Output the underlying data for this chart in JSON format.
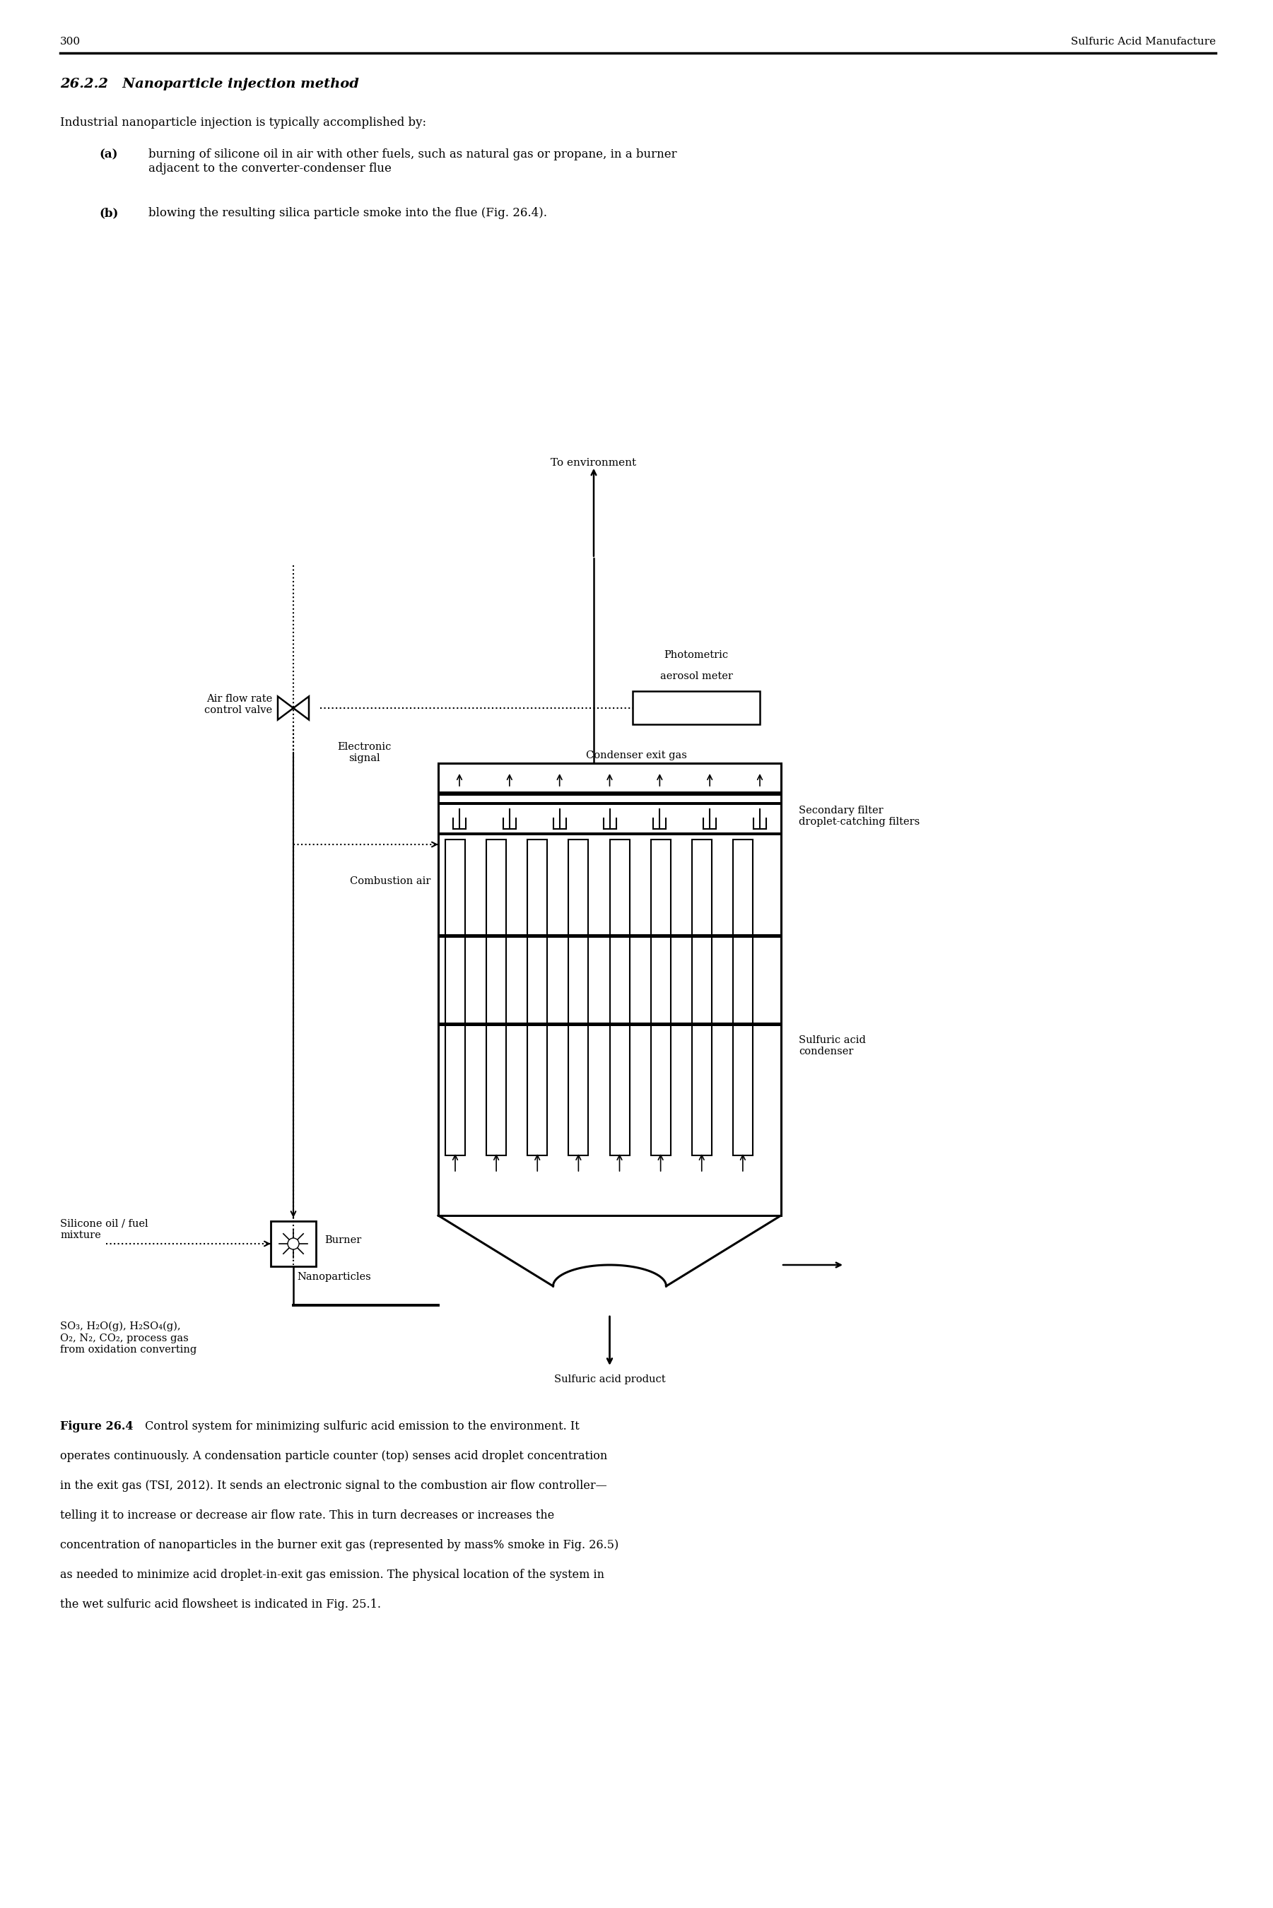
{
  "page_number": "300",
  "header_right": "Sulfuric Acid Manufacture",
  "section_title": "26.2.2   Nanoparticle injection method",
  "intro_text": "Industrial nanoparticle injection is typically accomplished by:",
  "item_a_label": "(a)",
  "item_a_text": "burning of silicone oil in air with other fuels, such as natural gas or propane, in a burner\nadjacent to the converter-condenser flue",
  "item_b_label": "(b)",
  "item_b_text": "blowing the resulting silica particle smoke into the flue (Fig. 26.4).",
  "label_to_env": "To environment",
  "label_photometric": "Photometric\naerosol meter",
  "label_electronic": "Electronic\nsignal",
  "label_condenser_exit": "Condenser exit gas",
  "label_airflow": "Air flow rate\ncontrol valve",
  "label_secondary": "Secondary filter\ndroplet-catching filters",
  "label_combustion_air": "Combustion air",
  "label_sulfuric_condenser": "Sulfuric acid\ncondenser",
  "label_silicone": "Silicone oil / fuel\nmixture",
  "label_burner": "Burner",
  "label_nanoparticles": "Nanoparticles",
  "label_so3": "SO₃, H₂O(g), H₂SO₄(g),\nO₂, N₂, CO₂, process gas\nfrom oxidation converting",
  "label_product": "Sulfuric acid product",
  "caption_bold": "Figure 26.4",
  "caption_rest": " Control system for minimizing sulfuric acid emission to the environment. It operates continuously. A condensation particle counter (top) senses acid droplet concentration in the exit gas (TSI, 2012). It sends an electronic signal to the combustion air flow controller—telling it to increase or decrease air flow rate. This in turn decreases or increases the concentration of nanoparticles in the burner exit gas (represented by mass% smoke in Fig. 26.5) as needed to minimize acid droplet-in-exit gas emission. The physical location of the system in the wet sulfuric acid flowsheet is indicated in Fig. 25.1.",
  "bg": "#ffffff"
}
